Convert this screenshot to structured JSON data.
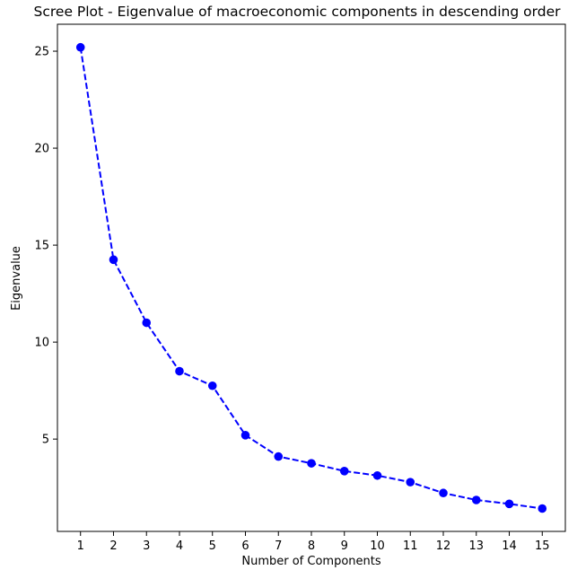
{
  "chart_data": {
    "type": "line",
    "title": "Scree Plot - Eigenvalue of macroeconomic components in descending order",
    "xlabel": "Number of Components",
    "ylabel": "Eigenvalue",
    "x": [
      1,
      2,
      3,
      4,
      5,
      6,
      7,
      8,
      9,
      10,
      11,
      12,
      13,
      14,
      15
    ],
    "series": [
      {
        "values": [
          25.2,
          14.25,
          11.0,
          8.5,
          7.75,
          5.2,
          4.1,
          3.75,
          3.35,
          3.12,
          2.78,
          2.22,
          1.86,
          1.66,
          1.42
        ],
        "color": "#0000ff",
        "line_style": "dashed",
        "marker": "circle"
      }
    ],
    "xticks": [
      1,
      2,
      3,
      4,
      5,
      6,
      7,
      8,
      9,
      10,
      11,
      12,
      13,
      14,
      15
    ],
    "yticks": [
      5,
      10,
      15,
      20,
      25
    ],
    "xlim": [
      0.3,
      15.7
    ],
    "ylim": [
      0.24,
      26.39
    ],
    "grid": false,
    "legend": "none"
  }
}
